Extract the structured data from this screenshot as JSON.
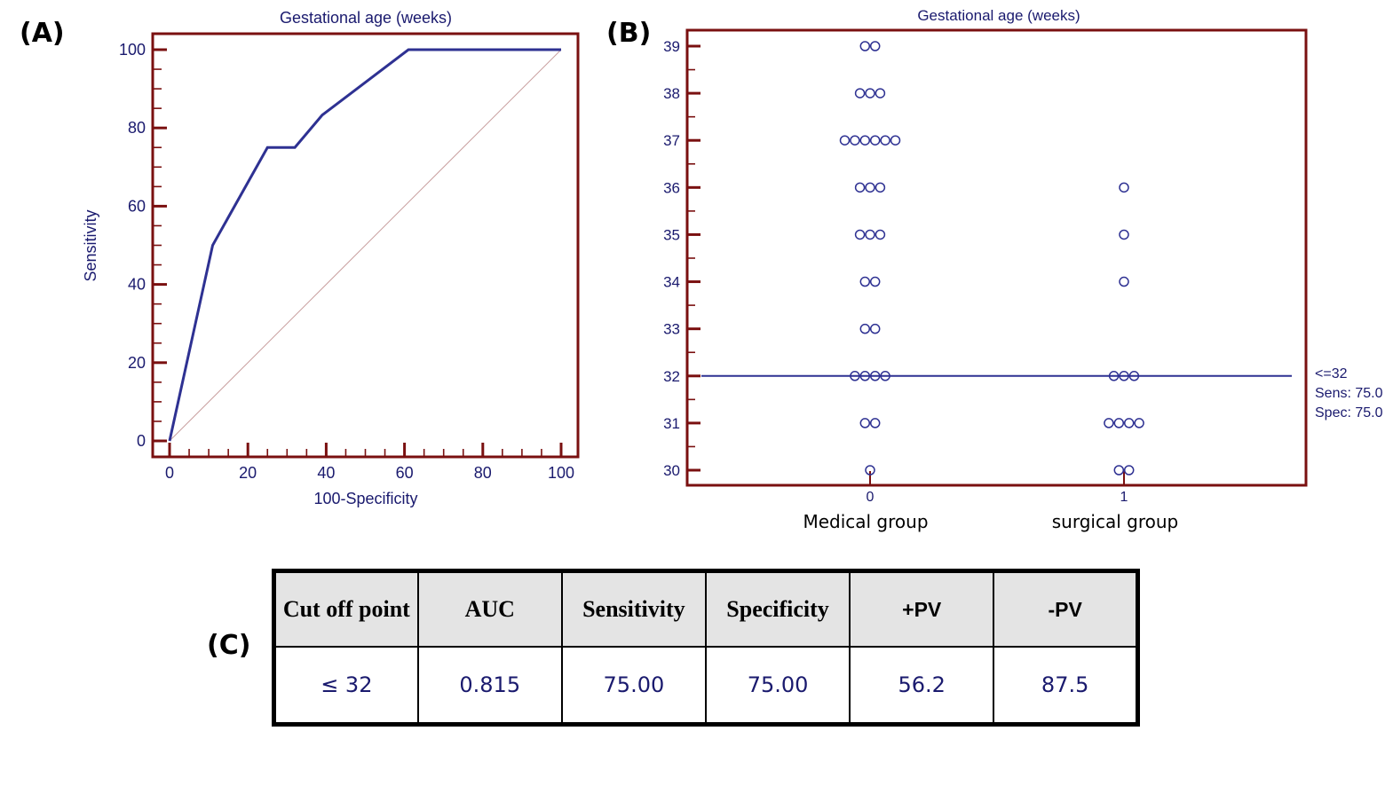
{
  "panels": {
    "a_label": "(A)",
    "b_label": "(B)",
    "c_label": "(C)"
  },
  "chart_data": [
    {
      "type": "line",
      "id": "roc-curve",
      "title": "Gestational age (weeks)",
      "xlabel": "100-Specificity",
      "ylabel": "Sensitivity",
      "xlim": [
        0,
        100
      ],
      "ylim": [
        0,
        100
      ],
      "xticks": [
        0,
        20,
        40,
        60,
        80,
        100
      ],
      "yticks": [
        0,
        20,
        40,
        60,
        80,
        100
      ],
      "grid": false,
      "series": [
        {
          "name": "ROC",
          "color": "#2e3192",
          "x": [
            0,
            11,
            25,
            32,
            39,
            61,
            100
          ],
          "y": [
            0,
            50,
            75,
            75,
            83.3,
            100,
            100
          ]
        },
        {
          "name": "Reference (chance)",
          "color": "#c9a0a0",
          "x": [
            0,
            100
          ],
          "y": [
            0,
            100
          ]
        }
      ]
    },
    {
      "type": "scatter",
      "id": "dot-plot",
      "title": "Gestational age (weeks)",
      "xlabel": "",
      "ylabel": "",
      "categories": [
        "0",
        "1"
      ],
      "category_labels": [
        "Medical group",
        "surgical group"
      ],
      "ylim": [
        30,
        39
      ],
      "yticks": [
        30,
        31,
        32,
        33,
        34,
        35,
        36,
        37,
        38,
        39
      ],
      "grid": false,
      "series": [
        {
          "name": "Medical group",
          "category": "0",
          "counts": {
            "30": 1,
            "31": 2,
            "32": 4,
            "33": 2,
            "34": 2,
            "35": 3,
            "36": 3,
            "37": 6,
            "38": 3,
            "39": 2
          }
        },
        {
          "name": "surgical group",
          "category": "1",
          "counts": {
            "30": 2,
            "31": 4,
            "32": 3,
            "33": 0,
            "34": 1,
            "35": 1,
            "36": 1,
            "37": 0,
            "38": 0,
            "39": 0
          }
        }
      ],
      "cutoff": {
        "value": 32,
        "label_lines": [
          "<=32",
          "Sens: 75.0",
          "Spec: 75.0"
        ]
      }
    }
  ],
  "table": {
    "headers": [
      "Cut off point",
      "AUC",
      "Sensitivity",
      "Specificity",
      "+PV",
      "-PV"
    ],
    "rows": [
      [
        "≤ 32",
        "0.815",
        "75.00",
        "75.00",
        "56.2",
        "87.5"
      ]
    ]
  },
  "colors": {
    "axis": "#7a1010",
    "curve": "#2e3192",
    "text": "#1a1a6e",
    "diagonal": "#c9a0a0"
  }
}
